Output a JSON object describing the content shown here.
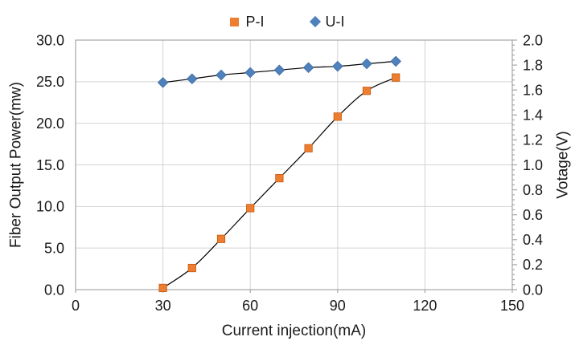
{
  "chart_data": {
    "type": "line",
    "x": [
      30,
      40,
      50,
      60,
      70,
      80,
      90,
      100,
      110
    ],
    "series": [
      {
        "name": "P-I",
        "axis": "left",
        "marker": "square",
        "marker_color": "#ED7D31",
        "marker_edge": "#C55A11",
        "values": [
          0.2,
          2.6,
          6.1,
          9.8,
          13.4,
          17.0,
          20.8,
          23.9,
          25.5
        ]
      },
      {
        "name": "U-I",
        "axis": "right",
        "marker": "diamond",
        "marker_color": "#4F81BD",
        "marker_edge": "#3B6AA0",
        "values": [
          1.66,
          1.69,
          1.72,
          1.74,
          1.76,
          1.78,
          1.79,
          1.81,
          1.83
        ]
      }
    ],
    "xlabel": "Current injection(mA)",
    "ylabel_left": "Fiber Output Power(mw)",
    "ylabel_right": "Votage(V)",
    "x_axis": {
      "min": 0,
      "max": 150,
      "step": 30
    },
    "y_left": {
      "min": 0,
      "max": 30,
      "step": 5,
      "decimals": 1
    },
    "y_right": {
      "min": 0,
      "max": 2,
      "step": 0.2,
      "minor_step": 0.04,
      "decimals": 1
    },
    "line_color": "#000000",
    "grid_color": "#D4D4D4",
    "axis_color": "#A6A6A6",
    "grid_on": true,
    "legend_position": "top-center"
  }
}
